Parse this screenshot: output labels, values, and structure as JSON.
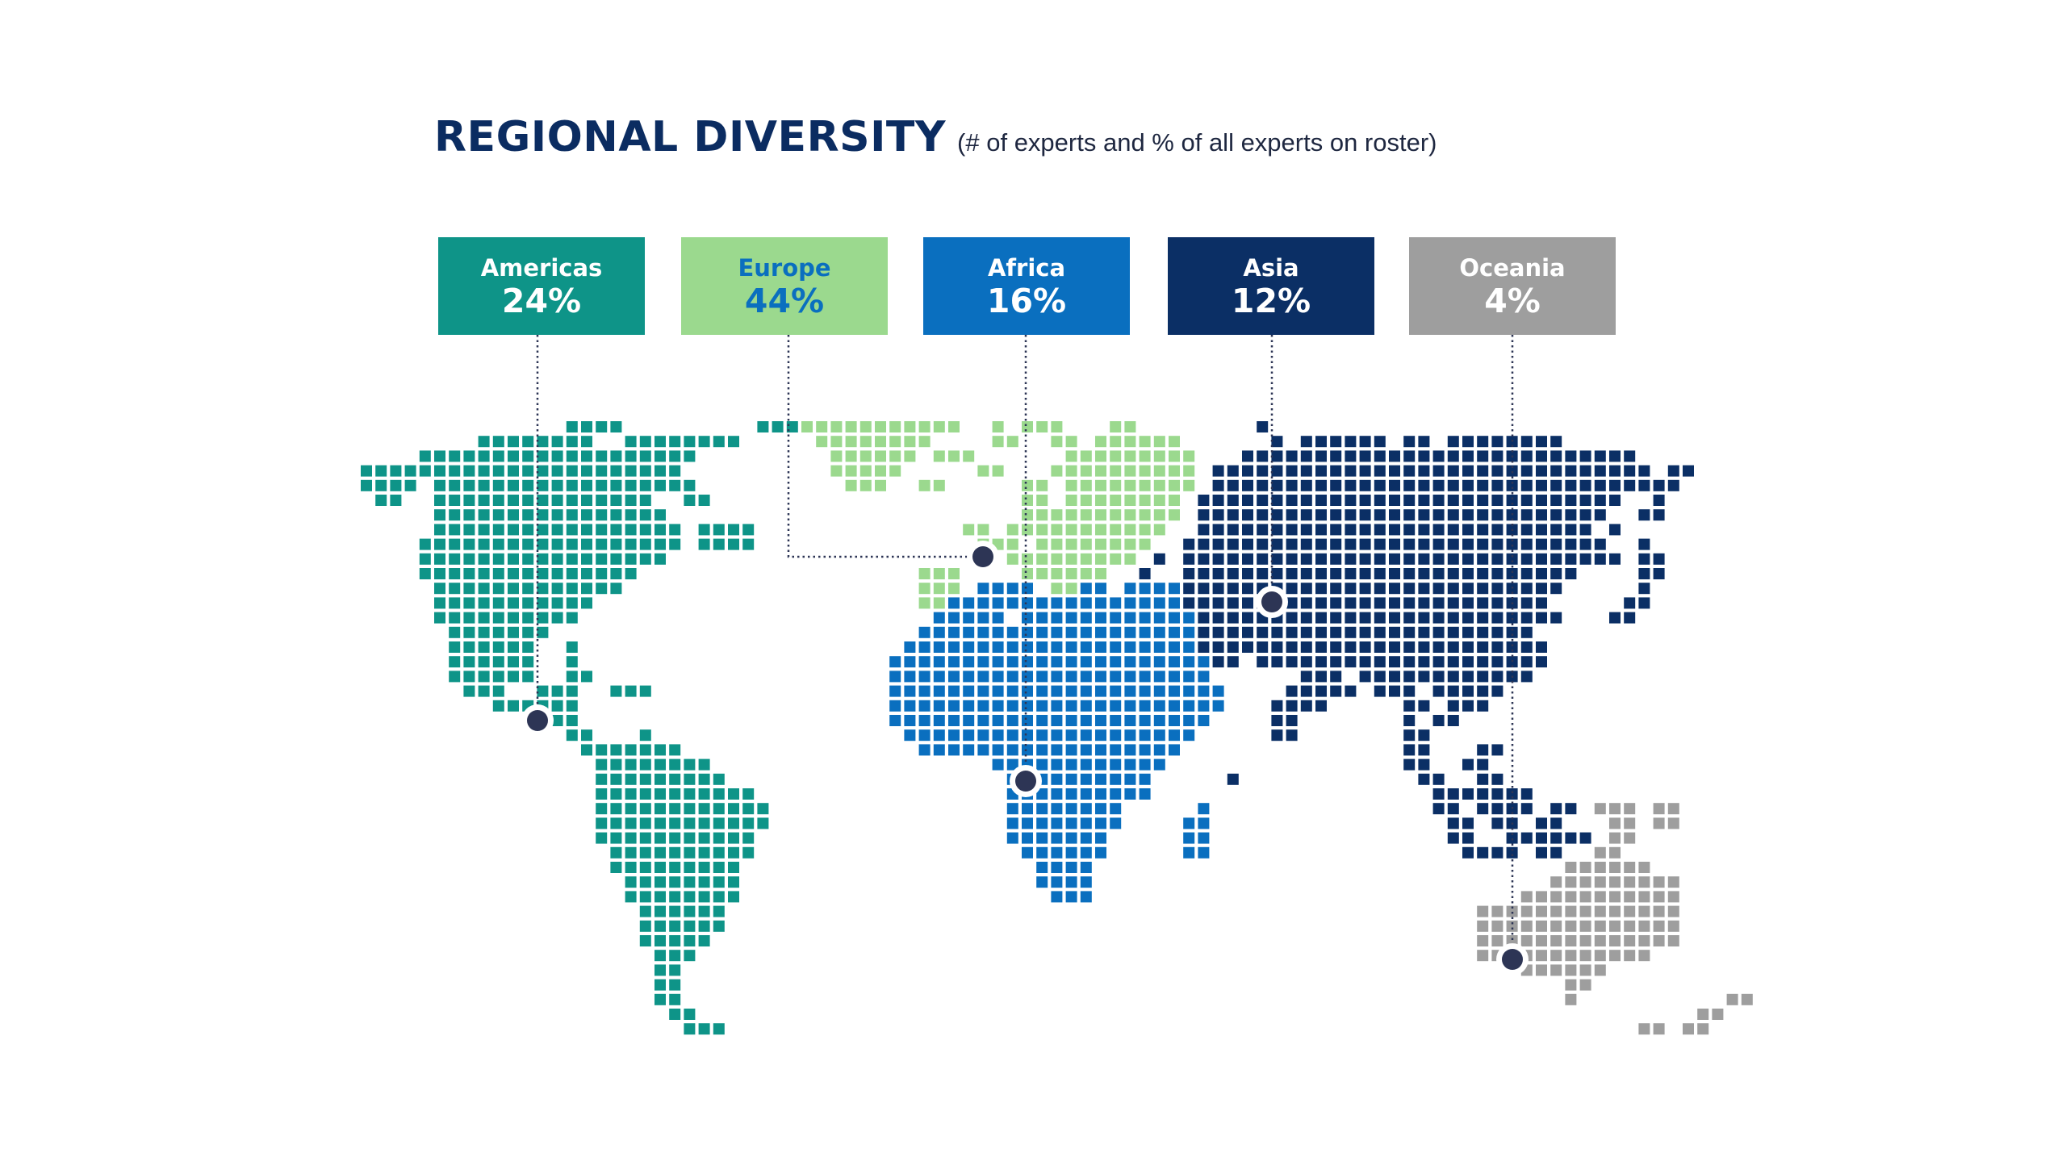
{
  "title": "REGIONAL DIVERSITY",
  "subtitle": "(# of experts and % of all experts on roster)",
  "colors": {
    "title": "#0b2c61",
    "americas": "#0e9488",
    "europe": "#9bd98e",
    "africa": "#0a6fbf",
    "asia": "#0b2f65",
    "oceania": "#9e9e9e",
    "marker": "#2d3555"
  },
  "chart_data": {
    "type": "bar",
    "categories": [
      "Americas",
      "Europe",
      "Africa",
      "Asia",
      "Oceania"
    ],
    "values": [
      24,
      44,
      16,
      12,
      4
    ],
    "unit": "%",
    "title": "REGIONAL DIVERSITY",
    "subtitle": "(# of experts and % of all experts on roster)"
  },
  "regions": [
    {
      "name": "Americas",
      "percent_label": "24%",
      "box_color": "#0e9488",
      "text_color": "#ffffff"
    },
    {
      "name": "Europe",
      "percent_label": "44%",
      "box_color": "#9bd98e",
      "text_color": "#0a6fbf"
    },
    {
      "name": "Africa",
      "percent_label": "16%",
      "box_color": "#0a6fbf",
      "text_color": "#ffffff"
    },
    {
      "name": "Asia",
      "percent_label": "12%",
      "box_color": "#0b2f65",
      "text_color": "#ffffff"
    },
    {
      "name": "Oceania",
      "percent_label": "4%",
      "box_color": "#9e9e9e",
      "text_color": "#ffffff"
    }
  ]
}
